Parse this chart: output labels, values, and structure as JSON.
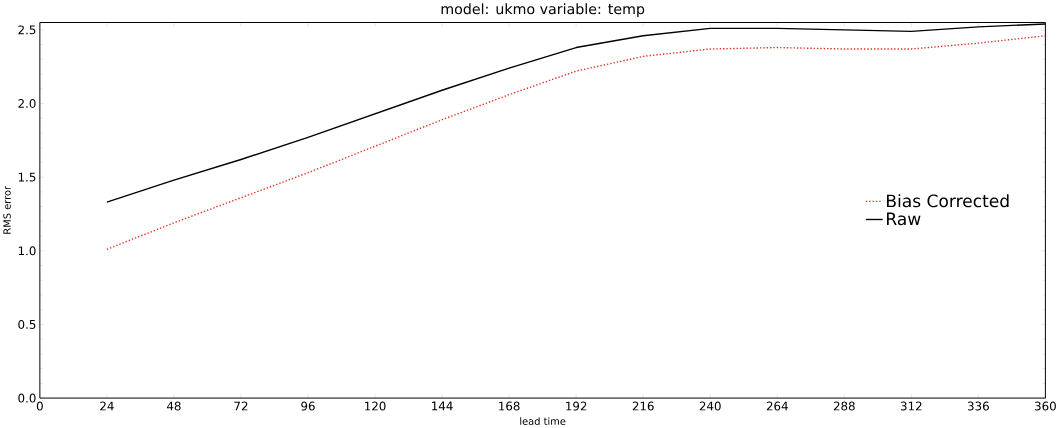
{
  "chart_data": {
    "type": "line",
    "title": "model: ukmo variable: temp",
    "xlabel": "lead time",
    "ylabel": "RMS error",
    "x": [
      24,
      48,
      72,
      96,
      120,
      144,
      168,
      192,
      216,
      240,
      264,
      288,
      312,
      336,
      360
    ],
    "series": [
      {
        "name": "Bias Corrected",
        "color": "#e0301e",
        "line_style": "dotted",
        "values": [
          1.01,
          1.19,
          1.36,
          1.53,
          1.71,
          1.89,
          2.06,
          2.22,
          2.32,
          2.37,
          2.38,
          2.37,
          2.37,
          2.41,
          2.46
        ]
      },
      {
        "name": "Raw",
        "color": "#000000",
        "line_style": "solid",
        "values": [
          1.33,
          1.48,
          1.62,
          1.77,
          1.93,
          2.09,
          2.24,
          2.38,
          2.46,
          2.51,
          2.51,
          2.5,
          2.49,
          2.52,
          2.54
        ]
      }
    ],
    "xlim": [
      0,
      360
    ],
    "ylim": [
      0,
      2.55
    ],
    "xticks": [
      0,
      24,
      48,
      72,
      96,
      120,
      144,
      168,
      192,
      216,
      240,
      264,
      288,
      312,
      336,
      360
    ],
    "yticks": [
      {
        "value": 0,
        "label": "0.0"
      },
      0.5,
      {
        "value": 1,
        "label": "1.0"
      },
      1.5,
      {
        "value": 2,
        "label": "2.0"
      },
      2.5
    ],
    "legend": "right",
    "grid": false
  }
}
